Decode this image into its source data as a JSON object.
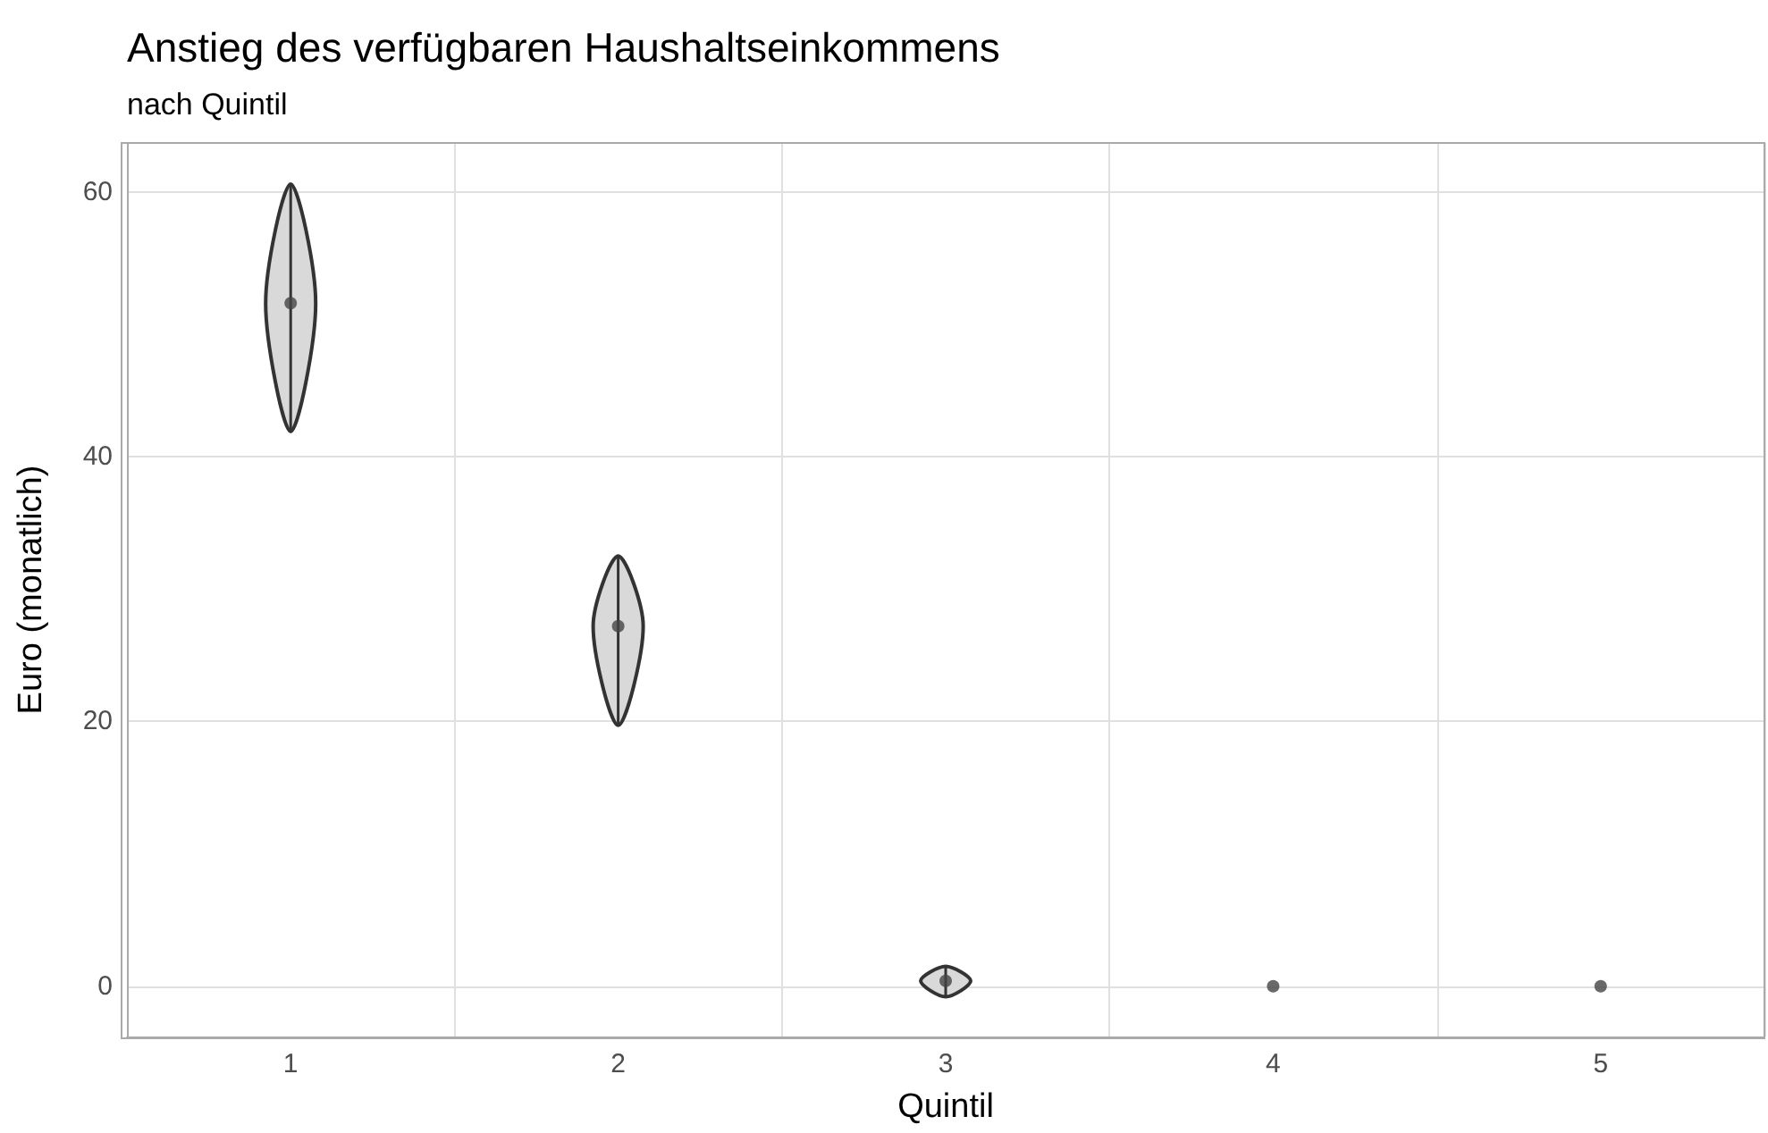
{
  "chart_data": {
    "type": "scatter",
    "title": "Anstieg des verfügbaren Haushaltseinkommens",
    "subtitle": "nach Quintil",
    "xlabel": "Quintil",
    "ylabel": "Euro (monatlich)",
    "categories": [
      "1",
      "2",
      "3",
      "4",
      "5"
    ],
    "series": [
      {
        "color": "#444444",
        "values": [
          51.6,
          27.2,
          0.4,
          0,
          0
        ],
        "errors": [
          [
            41.9,
            60.6
          ],
          [
            19.7,
            32.5
          ],
          [
            -0.8,
            1.5
          ],
          null,
          null
        ]
      }
    ],
    "ylim": [
      -3.8,
      63.7
    ],
    "yticks": [
      0,
      20,
      40,
      60
    ],
    "grid": true,
    "marker": "circle"
  }
}
